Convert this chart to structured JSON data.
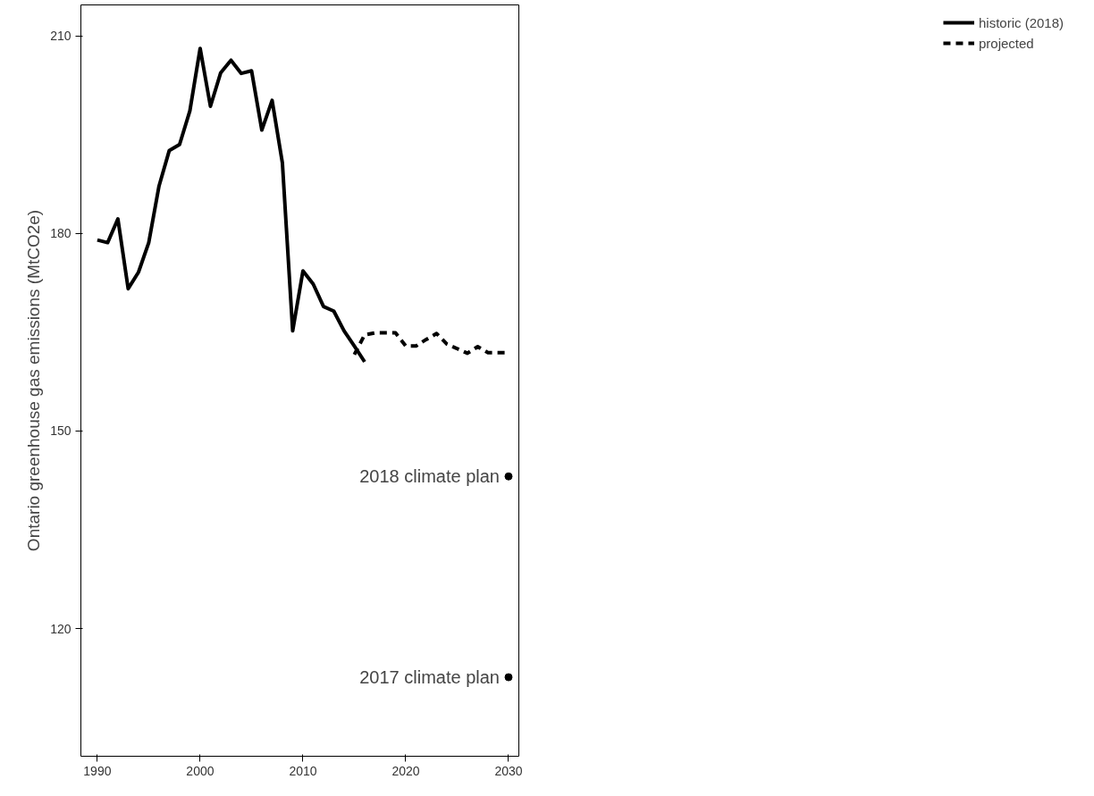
{
  "chart_data": {
    "type": "line",
    "ylabel": "Ontario greenhouse gas emissions (MtCO2e)",
    "xlim": [
      1988.4,
      2031.0
    ],
    "ylim": [
      100.6,
      214.7
    ],
    "xticks": [
      1990,
      2000,
      2010,
      2020,
      2030
    ],
    "yticks": [
      120,
      150,
      180,
      210
    ],
    "grid": false,
    "legend": "right",
    "series": [
      {
        "name": "historic (2018)",
        "color": "#000000",
        "line_style": "solid",
        "x": [
          1990,
          1991,
          1992,
          1993,
          1994,
          1995,
          1996,
          1997,
          1998,
          1999,
          2000,
          2001,
          2002,
          2003,
          2004,
          2005,
          2006,
          2007,
          2008,
          2009,
          2010,
          2011,
          2012,
          2013,
          2014,
          2015,
          2016
        ],
        "values": [
          179.0,
          178.6,
          182.2,
          171.6,
          174.1,
          178.6,
          187.2,
          192.6,
          193.5,
          198.6,
          208.1,
          199.3,
          204.4,
          206.3,
          204.3,
          204.7,
          195.7,
          200.2,
          190.7,
          165.2,
          174.3,
          172.3,
          168.9,
          168.2,
          165.2,
          162.9,
          160.5
        ]
      },
      {
        "name": "projected",
        "color": "#000000",
        "line_style": "dashed",
        "x": [
          2015,
          2016,
          2017,
          2018,
          2019,
          2020,
          2021,
          2022,
          2023,
          2024,
          2025,
          2026,
          2027,
          2028,
          2029,
          2030
        ],
        "values": [
          161.6,
          164.6,
          164.9,
          164.9,
          164.9,
          162.9,
          162.9,
          163.9,
          164.8,
          163.2,
          162.5,
          161.8,
          162.8,
          161.9,
          161.9,
          161.9
        ]
      },
      {
        "type": "scatter",
        "marker": "circle",
        "color": "#000000",
        "x": [
          2030,
          2030
        ],
        "values": [
          143.1,
          112.6
        ]
      }
    ],
    "annotations": [
      {
        "text": "2018 climate plan",
        "x": 2030,
        "y": 143.1
      },
      {
        "text": "2017 climate plan",
        "x": 2030,
        "y": 112.6
      }
    ]
  }
}
